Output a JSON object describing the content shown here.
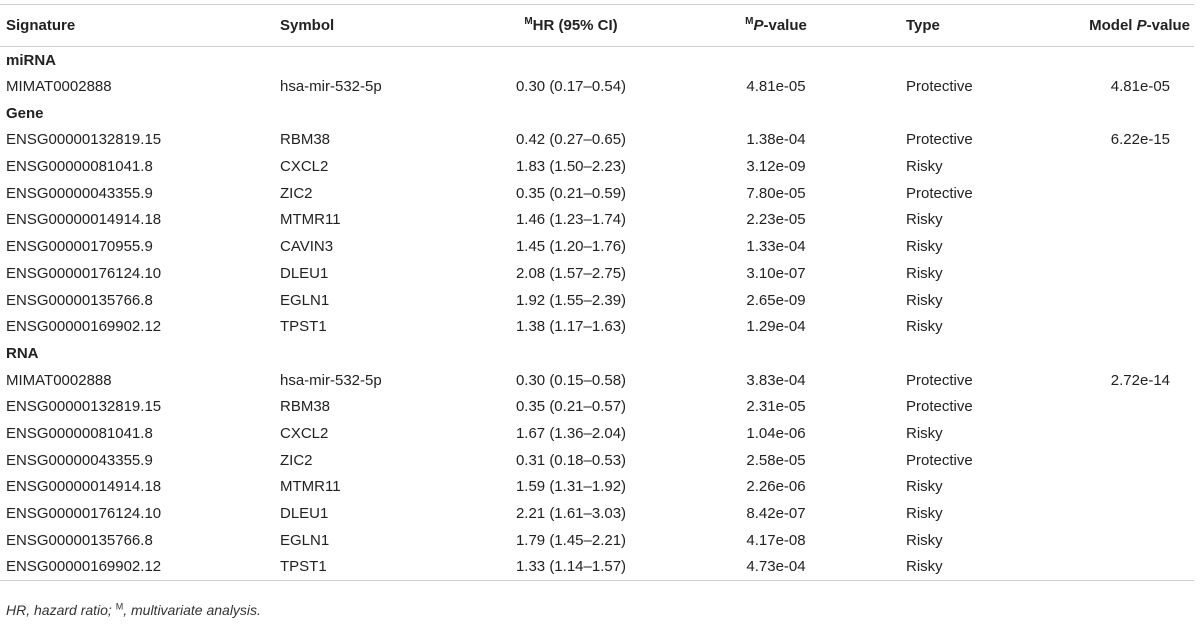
{
  "header": {
    "signature": "Signature",
    "symbol": "Symbol",
    "hr_sup": "M",
    "hr_text": "HR (95% CI)",
    "p_sup": "M",
    "p_text": "P",
    "p_suffix": "-value",
    "type": "Type",
    "model_prefix": "Model ",
    "model_p": "P",
    "model_suffix": "-value"
  },
  "sections": [
    {
      "title": "miRNA",
      "rows": [
        {
          "signature": "MIMAT0002888",
          "symbol": "hsa-mir-532-5p",
          "hr": "0.30 (0.17–0.54)",
          "p": "4.81e-05",
          "type": "Protective",
          "model_p": "4.81e-05"
        }
      ]
    },
    {
      "title": "Gene",
      "rows": [
        {
          "signature": "ENSG00000132819.15",
          "symbol": "RBM38",
          "hr": "0.42 (0.27–0.65)",
          "p": "1.38e-04",
          "type": "Protective",
          "model_p": "6.22e-15"
        },
        {
          "signature": "ENSG00000081041.8",
          "symbol": "CXCL2",
          "hr": "1.83 (1.50–2.23)",
          "p": "3.12e-09",
          "type": "Risky",
          "model_p": ""
        },
        {
          "signature": "ENSG00000043355.9",
          "symbol": "ZIC2",
          "hr": "0.35 (0.21–0.59)",
          "p": "7.80e-05",
          "type": "Protective",
          "model_p": ""
        },
        {
          "signature": "ENSG00000014914.18",
          "symbol": "MTMR11",
          "hr": "1.46 (1.23–1.74)",
          "p": "2.23e-05",
          "type": "Risky",
          "model_p": ""
        },
        {
          "signature": "ENSG00000170955.9",
          "symbol": "CAVIN3",
          "hr": "1.45 (1.20–1.76)",
          "p": "1.33e-04",
          "type": "Risky",
          "model_p": ""
        },
        {
          "signature": "ENSG00000176124.10",
          "symbol": "DLEU1",
          "hr": "2.08 (1.57–2.75)",
          "p": "3.10e-07",
          "type": "Risky",
          "model_p": ""
        },
        {
          "signature": "ENSG00000135766.8",
          "symbol": "EGLN1",
          "hr": "1.92 (1.55–2.39)",
          "p": "2.65e-09",
          "type": "Risky",
          "model_p": ""
        },
        {
          "signature": "ENSG00000169902.12",
          "symbol": "TPST1",
          "hr": "1.38 (1.17–1.63)",
          "p": "1.29e-04",
          "type": "Risky",
          "model_p": ""
        }
      ]
    },
    {
      "title": "RNA",
      "rows": [
        {
          "signature": "MIMAT0002888",
          "symbol": "hsa-mir-532-5p",
          "hr": "0.30 (0.15–0.58)",
          "p": "3.83e-04",
          "type": "Protective",
          "model_p": "2.72e-14"
        },
        {
          "signature": "ENSG00000132819.15",
          "symbol": "RBM38",
          "hr": "0.35 (0.21–0.57)",
          "p": "2.31e-05",
          "type": "Protective",
          "model_p": ""
        },
        {
          "signature": "ENSG00000081041.8",
          "symbol": "CXCL2",
          "hr": "1.67 (1.36–2.04)",
          "p": "1.04e-06",
          "type": "Risky",
          "model_p": ""
        },
        {
          "signature": "ENSG00000043355.9",
          "symbol": "ZIC2",
          "hr": "0.31 (0.18–0.53)",
          "p": "2.58e-05",
          "type": "Protective",
          "model_p": ""
        },
        {
          "signature": "ENSG00000014914.18",
          "symbol": "MTMR11",
          "hr": "1.59 (1.31–1.92)",
          "p": "2.26e-06",
          "type": "Risky",
          "model_p": ""
        },
        {
          "signature": "ENSG00000176124.10",
          "symbol": "DLEU1",
          "hr": "2.21 (1.61–3.03)",
          "p": "8.42e-07",
          "type": "Risky",
          "model_p": ""
        },
        {
          "signature": "ENSG00000135766.8",
          "symbol": "EGLN1",
          "hr": "1.79 (1.45–2.21)",
          "p": "4.17e-08",
          "type": "Risky",
          "model_p": ""
        },
        {
          "signature": "ENSG00000169902.12",
          "symbol": "TPST1",
          "hr": "1.33 (1.14–1.57)",
          "p": "4.73e-04",
          "type": "Risky",
          "model_p": ""
        }
      ]
    }
  ],
  "footnote": {
    "hr_abbr": "HR, hazard ratio; ",
    "sup": "M",
    "rest": ", multivariate analysis."
  },
  "colors": {
    "text": "#222222",
    "rule": "#cfcfcf"
  }
}
